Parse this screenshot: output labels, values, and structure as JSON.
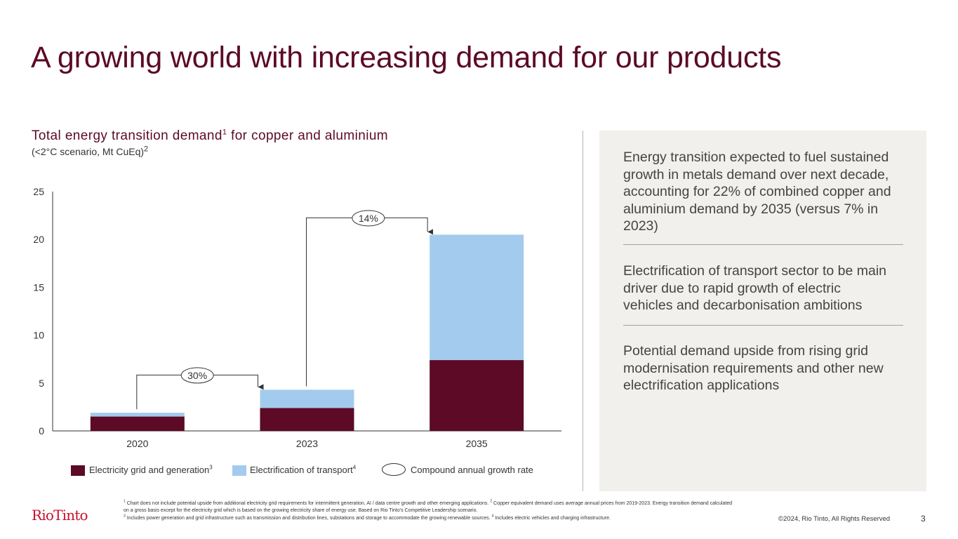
{
  "title": "A growing world with increasing demand for our products",
  "chart_title": {
    "main": "Total energy transition demand",
    "main_sup": "1",
    "main_suffix": " for copper and aluminium",
    "sub": "(<2°C scenario, Mt CuEq)",
    "sub_sup": "2"
  },
  "chart_data": {
    "type": "bar",
    "stacked": true,
    "categories": [
      "2020",
      "2023",
      "2035"
    ],
    "series": [
      {
        "name": "Electricity grid and generation",
        "sup": "3",
        "color": "#5c0a26",
        "values": [
          1.5,
          2.4,
          7.4
        ]
      },
      {
        "name": "Electrification of transport",
        "sup": "4",
        "color": "#a3cbed",
        "values": [
          0.4,
          1.9,
          13.1
        ]
      }
    ],
    "ylim": [
      0,
      25
    ],
    "yticks": [
      0,
      5,
      10,
      15,
      20,
      25
    ],
    "annotations": [
      {
        "label": "30%",
        "from": "2020",
        "to": "2023",
        "meaning": "Compound annual growth rate"
      },
      {
        "label": "14%",
        "from": "2023",
        "to": "2035",
        "meaning": "Compound annual growth rate"
      }
    ]
  },
  "legend": {
    "items": [
      {
        "label": "Electricity grid and generation",
        "sup": "3",
        "color": "#5c0a26"
      },
      {
        "label": "Electrification of transport",
        "sup": "4",
        "color": "#a3cbed"
      }
    ],
    "cagr_label": "Compound annual growth rate"
  },
  "panel": {
    "points": [
      "Energy transition expected to fuel sustained growth in metals demand over next decade, accounting for 22% of combined copper and aluminium demand by 2035 (versus 7% in 2023)",
      "Electrification of transport sector to be main driver due to rapid growth of electric vehicles and decarbonisation ambitions",
      "Potential demand upside from rising grid modernisation requirements and other new electrification applications"
    ]
  },
  "footer": {
    "logo": "RioTinto",
    "footnote_1": "Chart does not include potential upside from additional electricity grid requirements for intermittent generation, AI / data centre growth and other emerging applications.",
    "footnote_2": "Copper equivalent demand uses average annual prices from 2019-2023. Energy transition demand calculated on a gross basis except for the electricity grid which is based on the growing electricity share of energy use. Based on Rio Tinto's Competitive Leadership scenario.",
    "footnote_3": "Includes power generation and grid infrastructure such as transmission and distribution lines, substations and storage to accommodate the growing renewable sources.",
    "footnote_4": "Includes electric vehicles and charging infrastructure.",
    "copyright": "©2024, Rio Tinto, All Rights Reserved",
    "page_number": "3"
  },
  "colors": {
    "brand": "#5c0a26",
    "panel_bg": "#f1f0ec",
    "logo_red": "#c8102e"
  }
}
